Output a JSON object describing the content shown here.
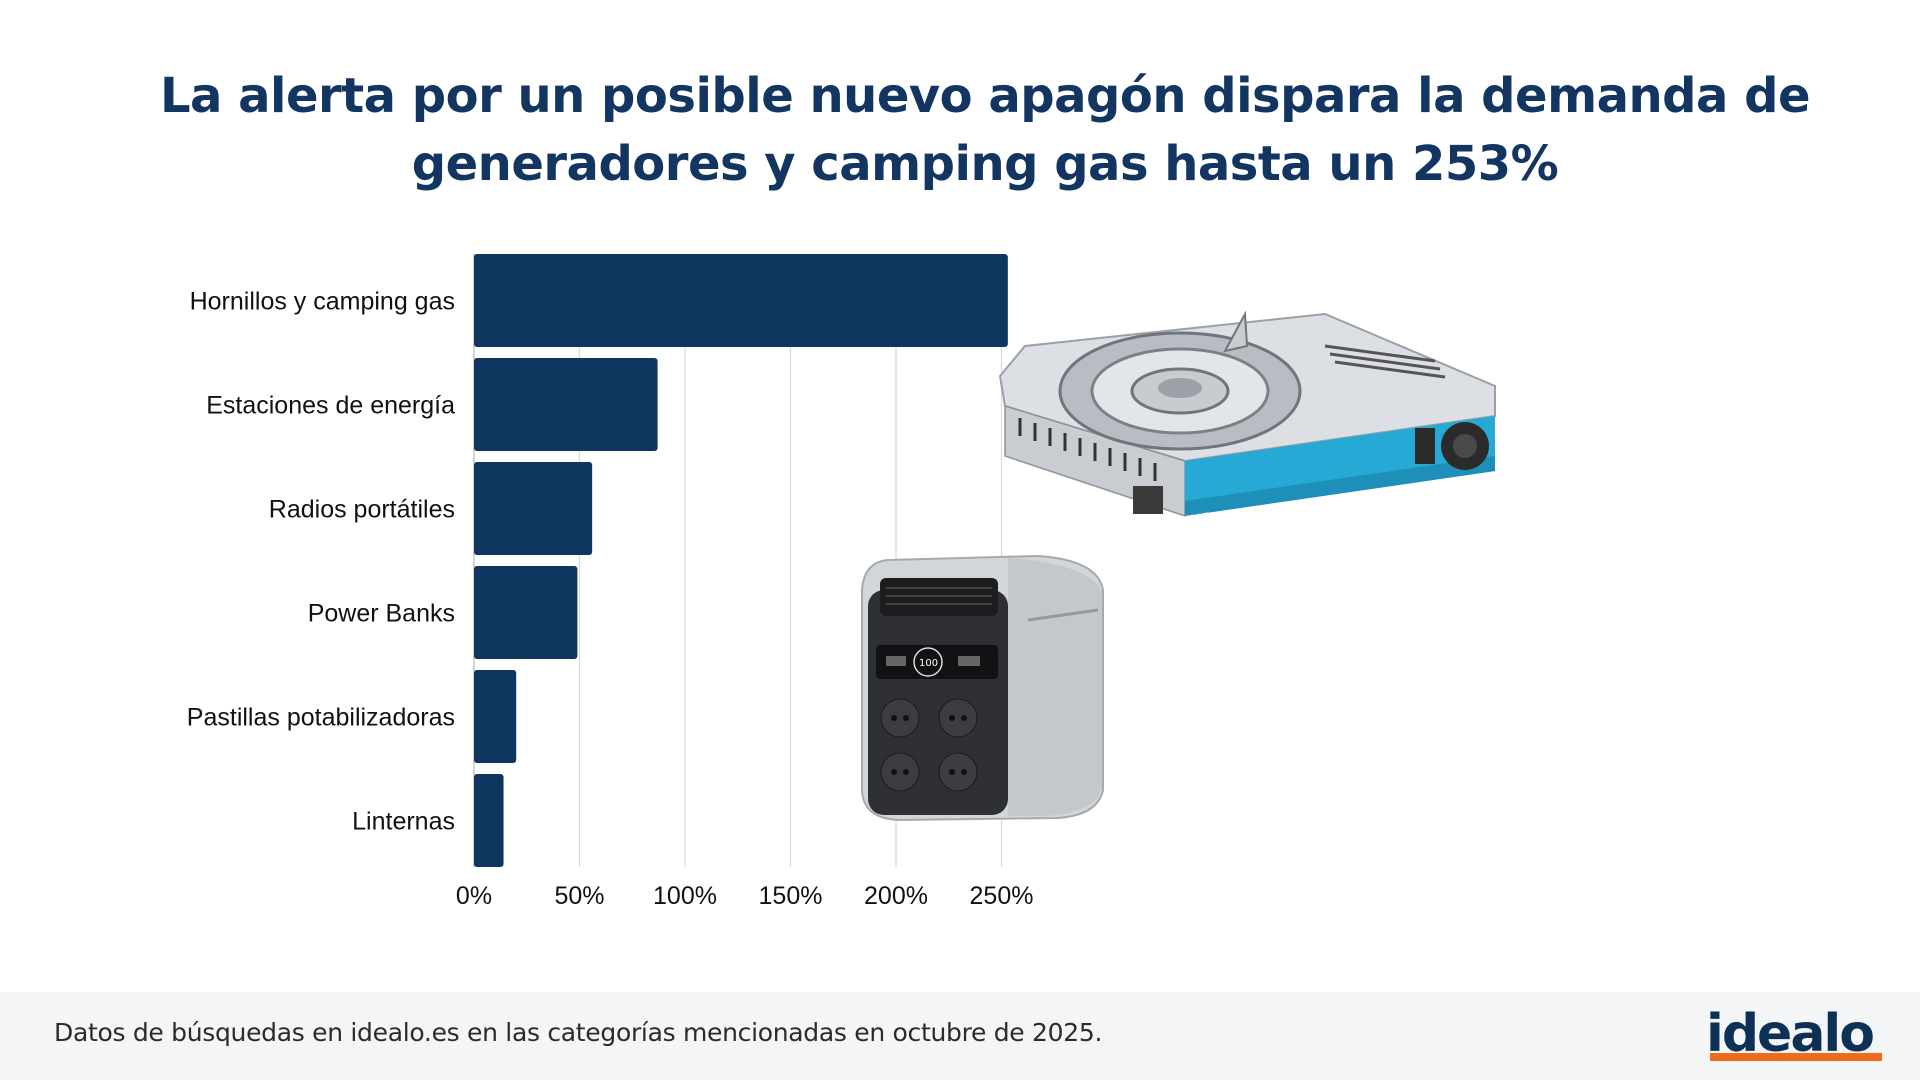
{
  "title_line1": "La alerta por un posible nuevo apagón dispara la demanda de",
  "title_line2": "generadores y camping gas hasta un 253%",
  "footnote": "Datos de búsquedas en idealo.es en las categorías mencionadas en octubre de 2025.",
  "logo": "idealo",
  "colors": {
    "bar": "#0f365f",
    "title": "#123561",
    "grid": "#d9d9d9",
    "accent": "#f26a1b"
  },
  "images": [
    "camping-stove-photo",
    "power-station-photo"
  ],
  "chart_data": {
    "type": "bar",
    "orientation": "horizontal",
    "categories": [
      "Hornillos y camping gas",
      "Estaciones de energía",
      "Radios portátiles",
      "Power Banks",
      "Pastillas potabilizadoras",
      "Linternas"
    ],
    "values": [
      253,
      87,
      56,
      49,
      20,
      14
    ],
    "unit": "%",
    "xlim": [
      0,
      250
    ],
    "xticks": [
      0,
      50,
      100,
      150,
      200,
      250
    ],
    "xtick_labels": [
      "0%",
      "50%",
      "100%",
      "150%",
      "200%",
      "250%"
    ],
    "grid": "vertical",
    "legend": "none"
  }
}
